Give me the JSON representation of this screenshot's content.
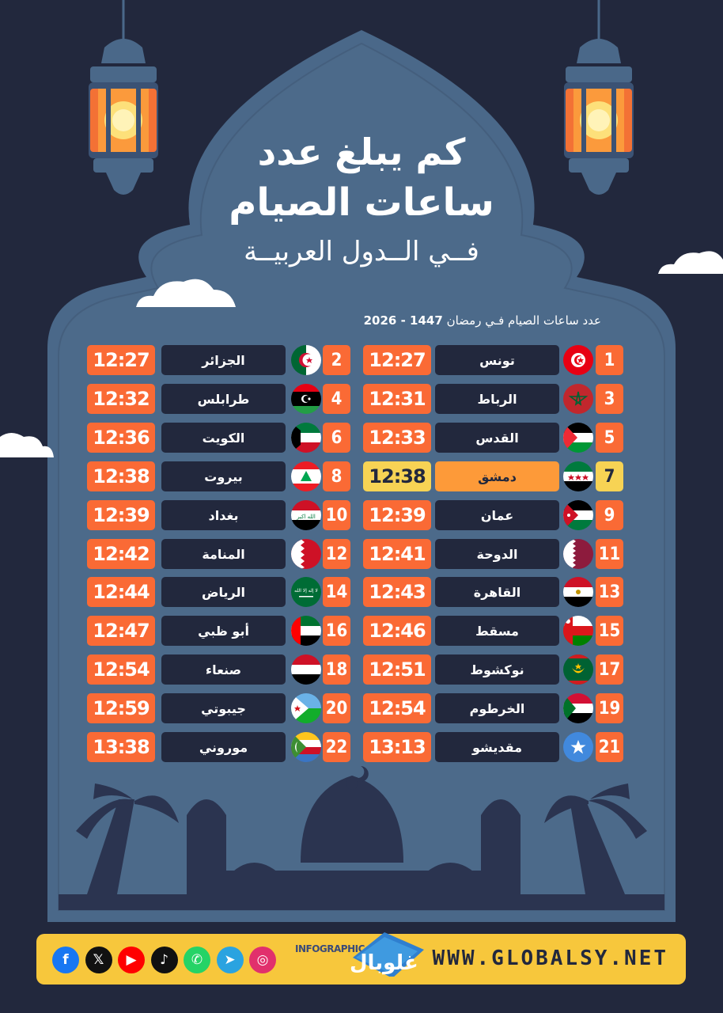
{
  "title": {
    "line1": "كم يبلغ عدد",
    "line2": "ساعات الصيام",
    "line3": "فــي الــدول العربيــة"
  },
  "subtitle": {
    "text": "عدد ساعات الصيام فـي رمضان",
    "years": "1447 - 2026"
  },
  "colors": {
    "background": "#22283d",
    "panel": "#4a6889",
    "accent": "#fa6a35",
    "highlight": "#f7d354",
    "highlight_city": "#fd9a39",
    "footer": "#f7c73c"
  },
  "entries": [
    {
      "rank": "1",
      "city": "تونس",
      "hours": "12:27",
      "flag": "tunisia-flag-icon"
    },
    {
      "rank": "2",
      "city": "الجزائر",
      "hours": "12:27",
      "flag": "algeria-flag-icon"
    },
    {
      "rank": "3",
      "city": "الرباط",
      "hours": "12:31",
      "flag": "morocco-flag-icon"
    },
    {
      "rank": "4",
      "city": "طرابلس",
      "hours": "12:32",
      "flag": "libya-flag-icon"
    },
    {
      "rank": "5",
      "city": "القدس",
      "hours": "12:33",
      "flag": "palestine-flag-icon"
    },
    {
      "rank": "6",
      "city": "الكويت",
      "hours": "12:36",
      "flag": "kuwait-flag-icon"
    },
    {
      "rank": "7",
      "city": "دمشق",
      "hours": "12:38",
      "flag": "syria-flag-icon",
      "highlight": true
    },
    {
      "rank": "8",
      "city": "بيروت",
      "hours": "12:38",
      "flag": "lebanon-flag-icon"
    },
    {
      "rank": "9",
      "city": "عمان",
      "hours": "12:39",
      "flag": "jordan-flag-icon"
    },
    {
      "rank": "10",
      "city": "بغداد",
      "hours": "12:39",
      "flag": "iraq-flag-icon"
    },
    {
      "rank": "11",
      "city": "الدوحة",
      "hours": "12:41",
      "flag": "qatar-flag-icon"
    },
    {
      "rank": "12",
      "city": "المنامة",
      "hours": "12:42",
      "flag": "bahrain-flag-icon"
    },
    {
      "rank": "13",
      "city": "القاهرة",
      "hours": "12:43",
      "flag": "egypt-flag-icon"
    },
    {
      "rank": "14",
      "city": "الرياض",
      "hours": "12:44",
      "flag": "saudi-arabia-flag-icon"
    },
    {
      "rank": "15",
      "city": "مسقط",
      "hours": "12:46",
      "flag": "oman-flag-icon"
    },
    {
      "rank": "16",
      "city": "أبو ظبي",
      "hours": "12:47",
      "flag": "uae-flag-icon"
    },
    {
      "rank": "17",
      "city": "نوكشوط",
      "hours": "12:51",
      "flag": "mauritania-flag-icon"
    },
    {
      "rank": "18",
      "city": "صنعاء",
      "hours": "12:54",
      "flag": "yemen-flag-icon"
    },
    {
      "rank": "19",
      "city": "الخرطوم",
      "hours": "12:54",
      "flag": "sudan-flag-icon"
    },
    {
      "rank": "20",
      "city": "جيبوتي",
      "hours": "12:59",
      "flag": "djibouti-flag-icon"
    },
    {
      "rank": "21",
      "city": "مقديشو",
      "hours": "13:13",
      "flag": "somalia-flag-icon"
    },
    {
      "rank": "22",
      "city": "موروني",
      "hours": "13:38",
      "flag": "comoros-flag-icon"
    }
  ],
  "footer": {
    "website": "WWW.GLOBALSY.NET",
    "logo_tag": "INFOGRAPHIC",
    "logo_word": "غلوبال",
    "social": [
      {
        "icon": "facebook-icon",
        "glyph": "f",
        "color": "#1877f2"
      },
      {
        "icon": "x-icon",
        "glyph": "𝕏",
        "color": "#111111"
      },
      {
        "icon": "youtube-icon",
        "glyph": "▶",
        "color": "#ff0000"
      },
      {
        "icon": "tiktok-icon",
        "glyph": "♪",
        "color": "#111111"
      },
      {
        "icon": "whatsapp-icon",
        "glyph": "✆",
        "color": "#25d366"
      },
      {
        "icon": "telegram-icon",
        "glyph": "➤",
        "color": "#2aa3e0"
      },
      {
        "icon": "instagram-icon",
        "glyph": "◎",
        "color": "#e1306c"
      }
    ]
  }
}
